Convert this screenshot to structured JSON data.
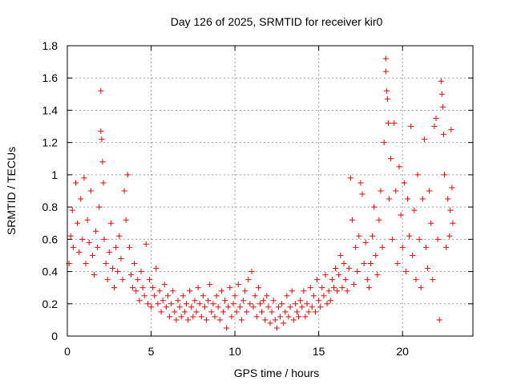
{
  "chart_data": {
    "type": "scatter",
    "title": "Day 126 of 2025, SRMTID for receiver kir0",
    "xlabel": "GPS time / hours",
    "ylabel": "SRMTID / TECUs",
    "xlim": [
      0,
      24.2
    ],
    "ylim": [
      0,
      1.8
    ],
    "xticks": [
      0,
      5,
      10,
      15,
      20
    ],
    "xtick_labels": [
      "0",
      "5",
      "10",
      "15",
      "20"
    ],
    "yticks": [
      0,
      0.2,
      0.4,
      0.6,
      0.8,
      1.0,
      1.2,
      1.4,
      1.6,
      1.8
    ],
    "ytick_labels": [
      "0",
      "0.2",
      "0.4",
      "0.6",
      "0.8",
      "1",
      "1.2",
      "1.4",
      "1.6",
      "1.8"
    ],
    "grid": true,
    "marker": "+",
    "color": "#ff0000",
    "series": [
      {
        "name": "SRMTID",
        "points": [
          [
            0.1,
            0.45
          ],
          [
            0.2,
            0.62
          ],
          [
            0.3,
            0.78
          ],
          [
            0.35,
            0.55
          ],
          [
            0.5,
            0.95
          ],
          [
            0.6,
            0.7
          ],
          [
            0.7,
            0.52
          ],
          [
            0.8,
            0.85
          ],
          [
            0.9,
            0.6
          ],
          [
            1.0,
            0.98
          ],
          [
            1.1,
            0.45
          ],
          [
            1.2,
            0.72
          ],
          [
            1.3,
            0.58
          ],
          [
            1.4,
            0.9
          ],
          [
            1.5,
            0.5
          ],
          [
            1.6,
            0.38
          ],
          [
            1.7,
            0.65
          ],
          [
            1.8,
            0.55
          ],
          [
            1.9,
            0.8
          ],
          [
            2.0,
            1.52
          ],
          [
            2.0,
            1.27
          ],
          [
            2.05,
            1.22
          ],
          [
            2.1,
            1.08
          ],
          [
            2.15,
            0.95
          ],
          [
            2.2,
            0.6
          ],
          [
            2.3,
            0.45
          ],
          [
            2.4,
            0.35
          ],
          [
            2.5,
            0.52
          ],
          [
            2.6,
            0.7
          ],
          [
            2.7,
            0.42
          ],
          [
            2.8,
            0.3
          ],
          [
            2.9,
            0.55
          ],
          [
            3.0,
            0.4
          ],
          [
            3.1,
            0.62
          ],
          [
            3.2,
            0.48
          ],
          [
            3.3,
            0.35
          ],
          [
            3.4,
            0.9
          ],
          [
            3.5,
            0.72
          ],
          [
            3.6,
            1.0
          ],
          [
            3.7,
            0.55
          ],
          [
            3.8,
            0.38
          ],
          [
            3.9,
            0.3
          ],
          [
            4.0,
            0.45
          ],
          [
            4.1,
            0.28
          ],
          [
            4.2,
            0.35
          ],
          [
            4.3,
            0.22
          ],
          [
            4.4,
            0.4
          ],
          [
            4.5,
            0.3
          ],
          [
            4.6,
            0.25
          ],
          [
            4.7,
            0.57
          ],
          [
            4.8,
            0.2
          ],
          [
            4.9,
            0.35
          ],
          [
            5.0,
            0.18
          ],
          [
            5.1,
            0.3
          ],
          [
            5.2,
            0.25
          ],
          [
            5.3,
            0.42
          ],
          [
            5.4,
            0.2
          ],
          [
            5.5,
            0.28
          ],
          [
            5.6,
            0.15
          ],
          [
            5.7,
            0.22
          ],
          [
            5.8,
            0.32
          ],
          [
            5.9,
            0.18
          ],
          [
            6.0,
            0.25
          ],
          [
            6.1,
            0.12
          ],
          [
            6.2,
            0.2
          ],
          [
            6.3,
            0.28
          ],
          [
            6.4,
            0.15
          ],
          [
            6.5,
            0.1
          ],
          [
            6.6,
            0.22
          ],
          [
            6.7,
            0.18
          ],
          [
            6.8,
            0.12
          ],
          [
            6.9,
            0.25
          ],
          [
            7.0,
            0.15
          ],
          [
            7.1,
            0.2
          ],
          [
            7.2,
            0.1
          ],
          [
            7.3,
            0.28
          ],
          [
            7.4,
            0.18
          ],
          [
            7.5,
            0.12
          ],
          [
            7.6,
            0.22
          ],
          [
            7.7,
            0.15
          ],
          [
            7.8,
            0.3
          ],
          [
            7.9,
            0.2
          ],
          [
            8.0,
            0.12
          ],
          [
            8.1,
            0.25
          ],
          [
            8.2,
            0.18
          ],
          [
            8.3,
            0.1
          ],
          [
            8.4,
            0.22
          ],
          [
            8.5,
            0.32
          ],
          [
            8.6,
            0.15
          ],
          [
            8.7,
            0.2
          ],
          [
            8.8,
            0.12
          ],
          [
            8.9,
            0.25
          ],
          [
            9.0,
            0.18
          ],
          [
            9.1,
            0.1
          ],
          [
            9.2,
            0.28
          ],
          [
            9.3,
            0.15
          ],
          [
            9.4,
            0.22
          ],
          [
            9.5,
            0.05
          ],
          [
            9.6,
            0.18
          ],
          [
            9.7,
            0.3
          ],
          [
            9.8,
            0.12
          ],
          [
            9.9,
            0.2
          ],
          [
            10.0,
            0.25
          ],
          [
            10.1,
            0.15
          ],
          [
            10.2,
            0.32
          ],
          [
            10.3,
            0.18
          ],
          [
            10.4,
            0.1
          ],
          [
            10.5,
            0.22
          ],
          [
            10.6,
            0.28
          ],
          [
            10.7,
            0.15
          ],
          [
            10.8,
            0.35
          ],
          [
            10.9,
            0.2
          ],
          [
            11.0,
            0.4
          ],
          [
            11.1,
            0.18
          ],
          [
            11.2,
            0.25
          ],
          [
            11.3,
            0.12
          ],
          [
            11.4,
            0.3
          ],
          [
            11.5,
            0.2
          ],
          [
            11.6,
            0.15
          ],
          [
            11.7,
            0.22
          ],
          [
            11.8,
            0.1
          ],
          [
            11.9,
            0.25
          ],
          [
            12.0,
            0.18
          ],
          [
            12.1,
            0.08
          ],
          [
            12.2,
            0.15
          ],
          [
            12.3,
            0.22
          ],
          [
            12.4,
            0.1
          ],
          [
            12.5,
            0.05
          ],
          [
            12.6,
            0.18
          ],
          [
            12.7,
            0.12
          ],
          [
            12.8,
            0.2
          ],
          [
            12.9,
            0.08
          ],
          [
            13.0,
            0.15
          ],
          [
            13.1,
            0.25
          ],
          [
            13.2,
            0.12
          ],
          [
            13.3,
            0.18
          ],
          [
            13.4,
            0.28
          ],
          [
            13.5,
            0.1
          ],
          [
            13.6,
            0.2
          ],
          [
            13.7,
            0.15
          ],
          [
            13.8,
            0.12
          ],
          [
            13.9,
            0.22
          ],
          [
            14.0,
            0.18
          ],
          [
            14.1,
            0.28
          ],
          [
            14.2,
            0.12
          ],
          [
            14.3,
            0.2
          ],
          [
            14.4,
            0.15
          ],
          [
            14.5,
            0.3
          ],
          [
            14.6,
            0.18
          ],
          [
            14.7,
            0.25
          ],
          [
            14.8,
            0.15
          ],
          [
            14.9,
            0.35
          ],
          [
            15.0,
            0.22
          ],
          [
            15.1,
            0.18
          ],
          [
            15.2,
            0.3
          ],
          [
            15.3,
            0.25
          ],
          [
            15.4,
            0.38
          ],
          [
            15.5,
            0.2
          ],
          [
            15.6,
            0.28
          ],
          [
            15.7,
            0.22
          ],
          [
            15.8,
            0.35
          ],
          [
            15.9,
            0.3
          ],
          [
            16.0,
            0.42
          ],
          [
            16.1,
            0.28
          ],
          [
            16.2,
            0.38
          ],
          [
            16.3,
            0.5
          ],
          [
            16.4,
            0.3
          ],
          [
            16.5,
            0.45
          ],
          [
            16.6,
            0.35
          ],
          [
            16.7,
            0.28
          ],
          [
            16.8,
            0.42
          ],
          [
            16.9,
            0.98
          ],
          [
            17.0,
            0.72
          ],
          [
            17.1,
            0.32
          ],
          [
            17.2,
            0.55
          ],
          [
            17.3,
            0.4
          ],
          [
            17.4,
            0.62
          ],
          [
            17.5,
            0.95
          ],
          [
            17.6,
            0.88
          ],
          [
            17.7,
            0.45
          ],
          [
            17.8,
            0.58
          ],
          [
            17.9,
            0.35
          ],
          [
            18.0,
            0.3
          ],
          [
            18.1,
            0.45
          ],
          [
            18.2,
            0.62
          ],
          [
            18.3,
            0.8
          ],
          [
            18.4,
            0.5
          ],
          [
            18.5,
            0.38
          ],
          [
            18.6,
            0.72
          ],
          [
            18.7,
            0.9
          ],
          [
            18.8,
            0.55
          ],
          [
            18.9,
            1.2
          ],
          [
            19.0,
            1.72
          ],
          [
            19.0,
            1.64
          ],
          [
            19.05,
            1.52
          ],
          [
            19.1,
            1.47
          ],
          [
            19.15,
            1.32
          ],
          [
            19.2,
            0.85
          ],
          [
            19.3,
            1.1
          ],
          [
            19.4,
            0.6
          ],
          [
            19.5,
            1.32
          ],
          [
            19.6,
            0.9
          ],
          [
            19.7,
            0.45
          ],
          [
            19.8,
            1.05
          ],
          [
            19.9,
            0.75
          ],
          [
            20.0,
            0.55
          ],
          [
            20.1,
            0.95
          ],
          [
            20.2,
            0.4
          ],
          [
            20.3,
            0.85
          ],
          [
            20.4,
            0.62
          ],
          [
            20.5,
            1.3
          ],
          [
            20.6,
            0.5
          ],
          [
            20.7,
            0.78
          ],
          [
            20.8,
            0.35
          ],
          [
            20.9,
            1.0
          ],
          [
            21.0,
            0.6
          ],
          [
            21.1,
            0.3
          ],
          [
            21.2,
            0.85
          ],
          [
            21.3,
            1.22
          ],
          [
            21.4,
            0.55
          ],
          [
            21.5,
            0.42
          ],
          [
            21.6,
            0.9
          ],
          [
            21.7,
            0.7
          ],
          [
            21.8,
            0.35
          ],
          [
            21.9,
            1.3
          ],
          [
            22.0,
            1.35
          ],
          [
            22.1,
            0.6
          ],
          [
            22.2,
            0.1
          ],
          [
            22.3,
            1.58
          ],
          [
            22.35,
            1.5
          ],
          [
            22.4,
            1.42
          ],
          [
            22.45,
            1.25
          ],
          [
            22.5,
            1.0
          ],
          [
            22.6,
            0.55
          ],
          [
            22.7,
            0.85
          ],
          [
            22.8,
            0.62
          ],
          [
            22.85,
            0.78
          ],
          [
            22.9,
            1.28
          ],
          [
            22.95,
            0.92
          ],
          [
            23.0,
            0.7
          ]
        ]
      }
    ]
  }
}
